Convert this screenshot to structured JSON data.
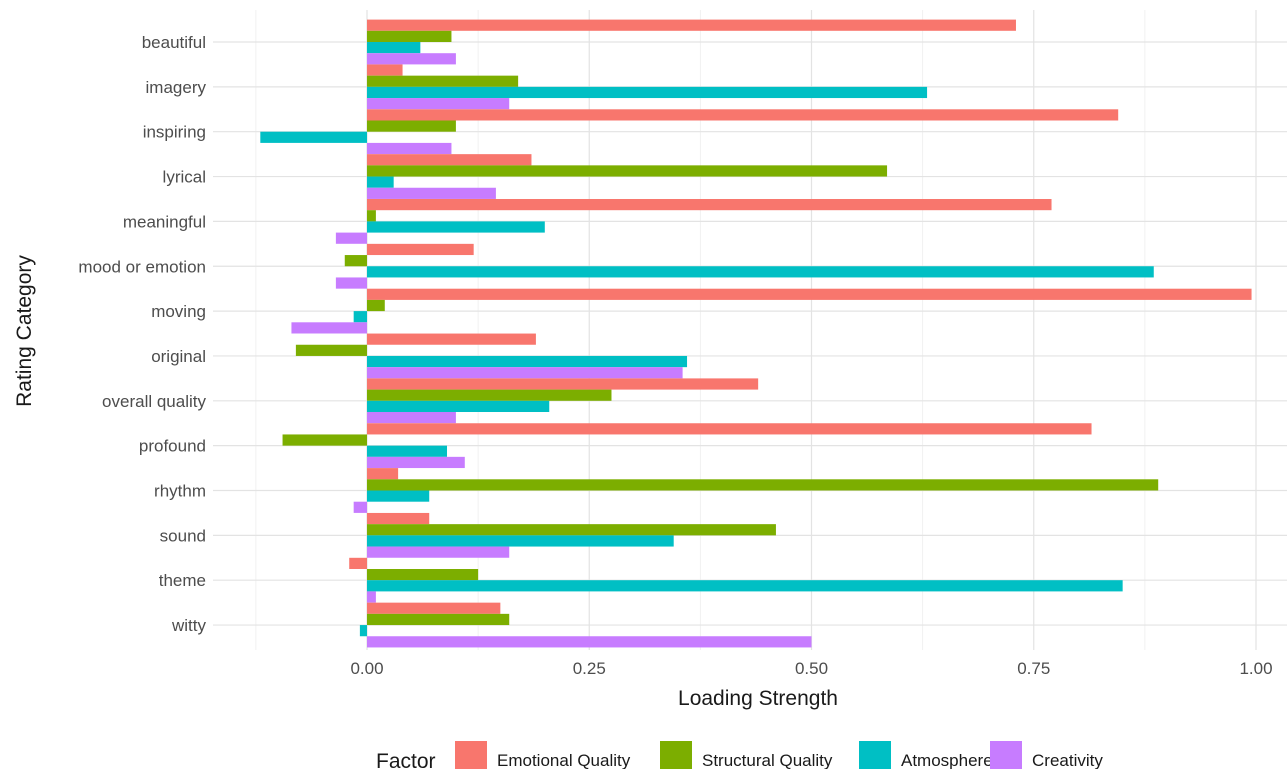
{
  "chart_data": {
    "type": "bar",
    "orientation": "horizontal",
    "xlabel": "Loading Strength",
    "ylabel": "Rating Category",
    "xlim": [
      -0.245,
      1.03
    ],
    "x_ticks": [
      "0.00",
      "0.25",
      "0.50",
      "0.75",
      "1.00"
    ],
    "x_tick_values": [
      0,
      0.25,
      0.5,
      0.75,
      1.0
    ],
    "grid": true,
    "legend_position": "bottom",
    "legend_title": "Factor",
    "categories": [
      "beautiful",
      "imagery",
      "inspiring",
      "lyrical",
      "meaningful",
      "mood or emotion",
      "moving",
      "original",
      "overall quality",
      "profound",
      "rhythm",
      "sound",
      "theme",
      "witty"
    ],
    "series": [
      {
        "name": "Emotional Quality",
        "color": "#F8766D",
        "values": [
          0.73,
          0.04,
          0.845,
          0.185,
          0.77,
          0.12,
          0.995,
          0.19,
          0.44,
          0.815,
          0.035,
          0.07,
          -0.02,
          0.15
        ]
      },
      {
        "name": "Structural Quality",
        "color": "#7CAE00",
        "values": [
          0.095,
          0.17,
          0.1,
          0.585,
          0.01,
          -0.025,
          0.02,
          -0.08,
          0.275,
          -0.095,
          0.89,
          0.46,
          0.125,
          0.16
        ]
      },
      {
        "name": "Atmosphere",
        "color": "#00BFC4",
        "values": [
          0.06,
          0.63,
          -0.12,
          0.03,
          0.2,
          0.885,
          -0.015,
          0.36,
          0.205,
          0.09,
          0.07,
          0.345,
          0.85,
          -0.008
        ]
      },
      {
        "name": "Creativity",
        "color": "#C77CFF",
        "values": [
          0.1,
          0.16,
          0.095,
          0.145,
          -0.035,
          -0.035,
          -0.085,
          0.355,
          0.1,
          0.11,
          -0.015,
          0.16,
          0.01,
          0.5
        ]
      }
    ]
  }
}
